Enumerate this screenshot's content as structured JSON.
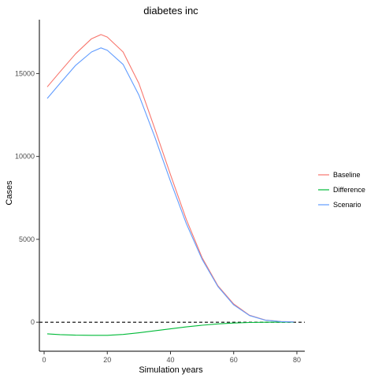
{
  "chart_data": {
    "type": "line",
    "title": "diabetes inc",
    "xlabel": "Simulation years",
    "ylabel": "Cases",
    "xlim": [
      -1.5,
      82.5
    ],
    "ylim": [
      -1750,
      18250
    ],
    "x_ticks": [
      0,
      20,
      40,
      60,
      80
    ],
    "y_ticks": [
      0,
      5000,
      10000,
      15000
    ],
    "grid": false,
    "legend_position": "right",
    "reference_line": {
      "y": 0,
      "style": "dashed",
      "color": "#000000"
    },
    "series": [
      {
        "name": "Baseline",
        "color": "#F8766D",
        "x": [
          1,
          5,
          10,
          15,
          18,
          20,
          25,
          30,
          35,
          40,
          45,
          50,
          55,
          60,
          65,
          70,
          75,
          79
        ],
        "y": [
          14200,
          15100,
          16200,
          17100,
          17350,
          17200,
          16300,
          14400,
          11700,
          8900,
          6200,
          3900,
          2200,
          1100,
          420,
          130,
          40,
          20
        ]
      },
      {
        "name": "Difference",
        "color": "#00BA38",
        "x": [
          1,
          5,
          10,
          15,
          20,
          25,
          30,
          35,
          40,
          45,
          50,
          55,
          60,
          65,
          70,
          75,
          79
        ],
        "y": [
          -700,
          -750,
          -780,
          -790,
          -790,
          -740,
          -640,
          -520,
          -400,
          -280,
          -180,
          -100,
          -50,
          -15,
          0,
          5,
          5
        ]
      },
      {
        "name": "Scenario",
        "color": "#619CFF",
        "x": [
          1,
          5,
          10,
          15,
          18,
          20,
          25,
          30,
          35,
          40,
          45,
          50,
          55,
          60,
          65,
          70,
          75,
          79
        ],
        "y": [
          13500,
          14400,
          15500,
          16300,
          16550,
          16400,
          15550,
          13700,
          11200,
          8500,
          5950,
          3800,
          2150,
          1050,
          400,
          120,
          35,
          15
        ]
      }
    ]
  }
}
